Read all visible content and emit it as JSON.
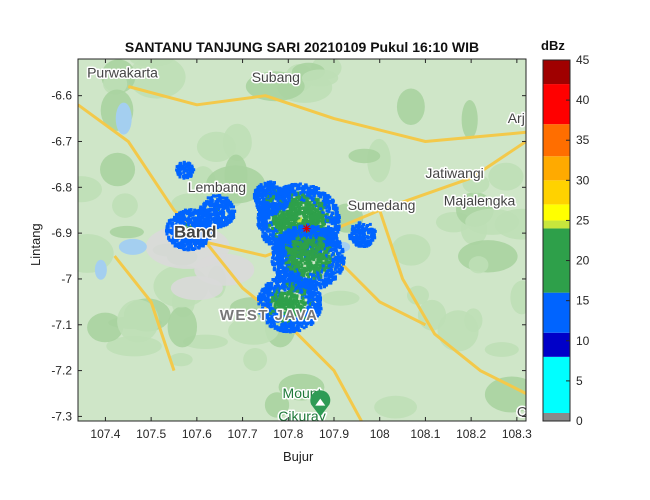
{
  "title": "SANTANU TANJUNG SARI 20210109 Pukul 16:10 WIB",
  "xlabel": "Bujur",
  "ylabel": "Lintang",
  "colorbar": {
    "title": "dBz",
    "ticks": [
      "0",
      "5",
      "10",
      "15",
      "20",
      "25",
      "30",
      "35",
      "40",
      "45"
    ],
    "range": [
      0,
      45
    ],
    "colors": [
      {
        "from": 0,
        "to": 1,
        "color": "#8a8a8a"
      },
      {
        "from": 1,
        "to": 8,
        "color": "#00ffff"
      },
      {
        "from": 8,
        "to": 11,
        "color": "#0000c8"
      },
      {
        "from": 11,
        "to": 16,
        "color": "#0064ff"
      },
      {
        "from": 16,
        "to": 24,
        "color": "#2ea04a"
      },
      {
        "from": 24,
        "to": 25,
        "color": "#c8e63c"
      },
      {
        "from": 25,
        "to": 27,
        "color": "#ffff00"
      },
      {
        "from": 27,
        "to": 30,
        "color": "#ffd200"
      },
      {
        "from": 30,
        "to": 33,
        "color": "#ffaa00"
      },
      {
        "from": 33,
        "to": 37,
        "color": "#ff6e00"
      },
      {
        "from": 37,
        "to": 42,
        "color": "#ff0000"
      },
      {
        "from": 42,
        "to": 45,
        "color": "#a00000"
      }
    ]
  },
  "map": {
    "place_labels": [
      {
        "text": "Purwakarta",
        "lon": 107.36,
        "lat": -6.56,
        "style": "city"
      },
      {
        "text": "Subang",
        "lon": 107.72,
        "lat": -6.57,
        "style": "city"
      },
      {
        "text": "Arj",
        "lon": 108.28,
        "lat": -6.66,
        "style": "city"
      },
      {
        "text": "Jatiwangi",
        "lon": 108.1,
        "lat": -6.78,
        "style": "city"
      },
      {
        "text": "Lembang",
        "lon": 107.58,
        "lat": -6.81,
        "style": "city"
      },
      {
        "text": "Sumedang",
        "lon": 107.93,
        "lat": -6.85,
        "style": "city"
      },
      {
        "text": "Majalengka",
        "lon": 108.14,
        "lat": -6.84,
        "style": "city"
      },
      {
        "text": "Band",
        "lon": 107.55,
        "lat": -6.91,
        "style": "bigcity"
      },
      {
        "text": "WEST JAVA",
        "lon": 107.65,
        "lat": -7.09,
        "style": "region"
      },
      {
        "text": "Mount",
        "lon": 107.83,
        "lat": -7.26,
        "style": "park"
      },
      {
        "text": "Cikuray",
        "lon": 107.83,
        "lat": -7.31,
        "style": "park"
      },
      {
        "text": "C",
        "lon": 108.3,
        "lat": -7.3,
        "style": "city"
      }
    ]
  },
  "chart_data": {
    "type": "heatmap",
    "title": "SANTANU TANJUNG SARI 20210109 Pukul 16:10 WIB",
    "xlabel": "Bujur",
    "ylabel": "Lintang",
    "xlim": [
      107.34,
      108.32
    ],
    "ylim": [
      -7.31,
      -6.52
    ],
    "xticks": [
      107.4,
      107.5,
      107.6,
      107.7,
      107.8,
      107.9,
      108.0,
      108.1,
      108.2,
      108.3
    ],
    "yticks": [
      -6.6,
      -6.7,
      -6.8,
      -6.9,
      -7.0,
      -7.1,
      -7.2,
      -7.3
    ],
    "xtick_labels": [
      "107.4",
      "107.5",
      "107.6",
      "107.7",
      "107.8",
      "107.9",
      "108",
      "108.1",
      "108.2",
      "108.3"
    ],
    "ytick_labels": [
      "-6.6",
      "-6.7",
      "-6.8",
      "-6.9",
      "-7",
      "-7.1",
      "-7.2",
      "-7.3"
    ],
    "radar_site": {
      "lon": 107.84,
      "lat": -6.89
    },
    "echo_regions": [
      {
        "lon": 107.82,
        "lat": -6.87,
        "radius": 0.09,
        "max_dbz": 24
      },
      {
        "lon": 107.84,
        "lat": -6.95,
        "radius": 0.08,
        "max_dbz": 22
      },
      {
        "lon": 107.8,
        "lat": -7.05,
        "radius": 0.07,
        "max_dbz": 21
      },
      {
        "lon": 107.58,
        "lat": -6.89,
        "radius": 0.05,
        "max_dbz": 16
      },
      {
        "lon": 107.64,
        "lat": -6.85,
        "radius": 0.04,
        "max_dbz": 15
      },
      {
        "lon": 107.76,
        "lat": -6.82,
        "radius": 0.04,
        "max_dbz": 17
      },
      {
        "lon": 107.96,
        "lat": -6.9,
        "radius": 0.03,
        "max_dbz": 15
      },
      {
        "lon": 107.57,
        "lat": -6.76,
        "radius": 0.02,
        "max_dbz": 14
      }
    ],
    "grid": false,
    "colorbar_label": "dBz",
    "colorbar_range": [
      0,
      45
    ]
  }
}
